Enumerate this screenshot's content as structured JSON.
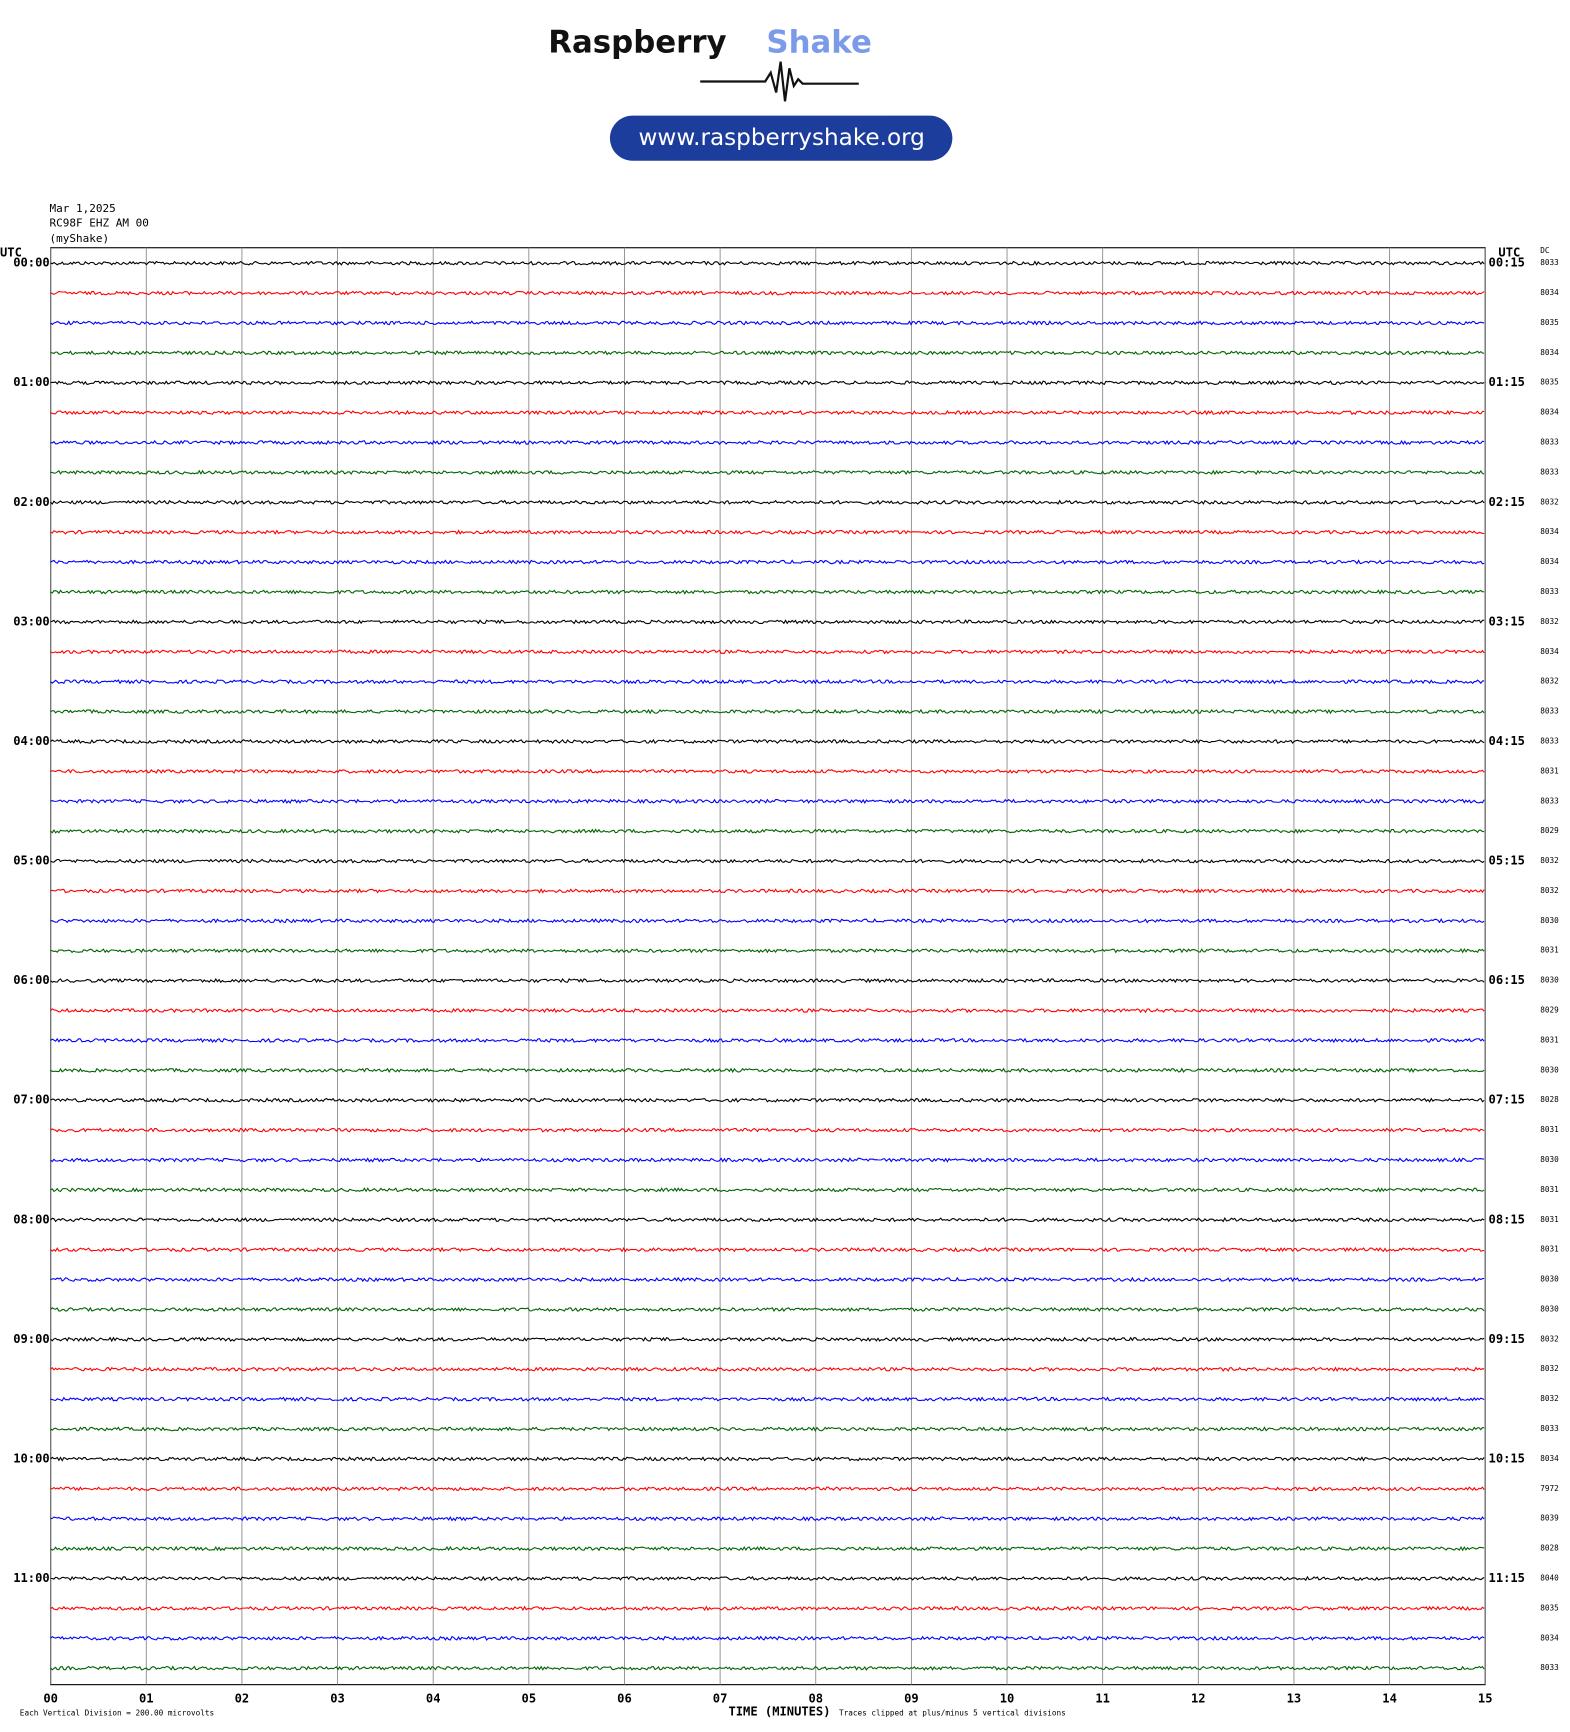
{
  "header": {
    "brand_main": "Raspberry",
    "brand_accent": "Shake",
    "url": "www.raspberryshake.org"
  },
  "chart_data": {
    "type": "helicorder",
    "info": [
      "Mar 1,2025",
      "RC98F EHZ AM 00",
      "(myShake)"
    ],
    "left_axis_title": "UTC",
    "right_axis_title": "UTC",
    "dc_title": "DC",
    "left_labels": [
      "00:00",
      "01:00",
      "02:00",
      "03:00",
      "04:00",
      "05:00",
      "06:00",
      "07:00",
      "08:00",
      "09:00",
      "10:00",
      "11:00"
    ],
    "right_labels": [
      "00:15",
      "01:15",
      "02:15",
      "03:15",
      "04:15",
      "05:15",
      "06:15",
      "07:15",
      "08:15",
      "09:15",
      "10:15",
      "11:15"
    ],
    "dc_values": [
      8033,
      8034,
      8035,
      8034,
      8035,
      8034,
      8033,
      8033,
      8032,
      8034,
      8034,
      8033,
      8032,
      8034,
      8032,
      8033,
      8033,
      8031,
      8033,
      8029,
      8032,
      8032,
      8030,
      8031,
      8030,
      8029,
      8031,
      8030,
      8028,
      8031,
      8030,
      8031,
      8031,
      8031,
      8030,
      8030,
      8032,
      8032,
      8032,
      8033,
      8034,
      7972,
      8039,
      8028,
      8040,
      8035,
      8034,
      8033
    ],
    "colors": [
      "#000000",
      "#ff0000",
      "#0000ff",
      "#006400"
    ],
    "xlim": [
      0,
      15
    ],
    "xticks": [
      {
        "value": 0,
        "label": "00"
      },
      {
        "value": 1,
        "label": "01"
      },
      {
        "value": 2,
        "label": "02"
      },
      {
        "value": 3,
        "label": "03"
      },
      {
        "value": 4,
        "label": "04"
      },
      {
        "value": 5,
        "label": "05"
      },
      {
        "value": 6,
        "label": "06"
      },
      {
        "value": 7,
        "label": "07"
      },
      {
        "value": 8,
        "label": "08"
      },
      {
        "value": 9,
        "label": "09"
      },
      10,
      11,
      12,
      13,
      14,
      15
    ],
    "xlabel": "TIME (MINUTES)",
    "footer_left": "Each Vertical Division =  200.00 microvolts",
    "footer_right": "Traces clipped at plus/minus 5 vertical divisions"
  }
}
